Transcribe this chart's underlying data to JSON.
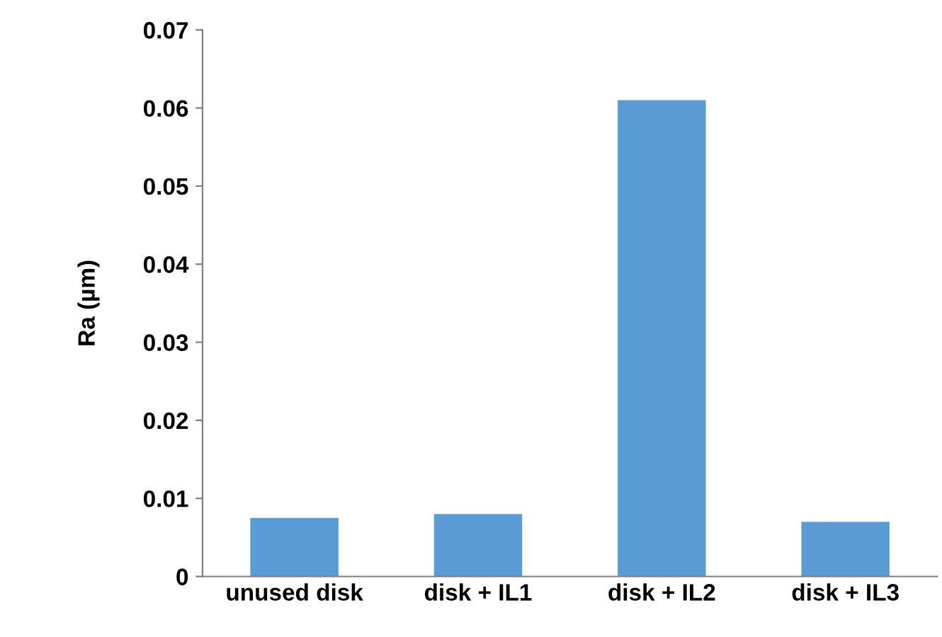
{
  "chart_data": {
    "type": "bar",
    "ylabel": "Ra (µm)",
    "categories": [
      "unused disk",
      "disk + IL1",
      "disk + IL2",
      "disk + IL3"
    ],
    "values": [
      0.0075,
      0.008,
      0.061,
      0.007
    ],
    "color": "#5b9bd5",
    "ylim": [
      0,
      0.07
    ],
    "yticks": [
      {
        "value": 0,
        "label": "0"
      },
      0.01,
      0.02,
      0.03,
      0.04,
      0.05,
      0.06,
      0.07
    ],
    "grid": false,
    "legend": false
  }
}
